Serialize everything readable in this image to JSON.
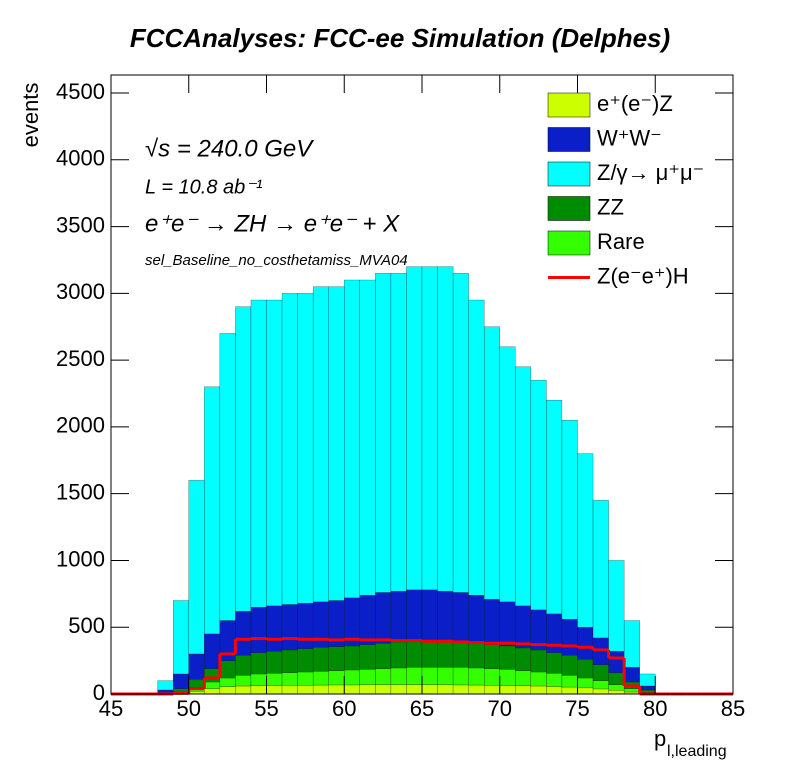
{
  "chart_data": {
    "type": "stacked_histogram",
    "title": "FCCAnalyses: FCC-ee Simulation (Delphes)",
    "x_label": {
      "main": "p",
      "sub": "l,leading"
    },
    "y_label": "events",
    "annotations": [
      "√s = 240.0 GeV",
      "L = 10.8 ab⁻¹",
      "e⁺e⁻ → ZH → e⁺e⁻ + X",
      "sel_Baseline_no_costhetamiss_MVA04"
    ],
    "bins": [
      45,
      46,
      47,
      48,
      49,
      50,
      51,
      52,
      53,
      54,
      55,
      56,
      57,
      58,
      59,
      60,
      61,
      62,
      63,
      64,
      65,
      66,
      67,
      68,
      69,
      70,
      71,
      72,
      73,
      74,
      75,
      76,
      77,
      78,
      79,
      80,
      81,
      82,
      83,
      84,
      85
    ],
    "xlim": [
      45,
      85
    ],
    "xticks": [
      45,
      50,
      55,
      60,
      65,
      70,
      75,
      80,
      85
    ],
    "ylim": [
      0,
      4635
    ],
    "yticks": [
      0,
      500,
      1000,
      1500,
      2000,
      2500,
      3000,
      3500,
      4000,
      4500
    ],
    "legend": "top-right",
    "series": [
      {
        "name": "e⁺(e⁻)Z",
        "color": "#ccff00",
        "values": [
          0,
          0,
          0,
          0,
          5,
          20,
          40,
          55,
          60,
          62,
          64,
          65,
          66,
          67,
          68,
          68,
          69,
          70,
          70,
          70,
          70,
          69,
          68,
          67,
          66,
          64,
          62,
          60,
          56,
          52,
          46,
          38,
          28,
          15,
          4,
          0,
          0,
          0,
          0,
          0
        ]
      },
      {
        "name": "W⁺W⁻",
        "color": "#0b1fc8",
        "values": [
          0,
          0,
          0,
          25,
          110,
          190,
          260,
          300,
          330,
          340,
          340,
          340,
          340,
          340,
          345,
          360,
          370,
          380,
          380,
          380,
          380,
          375,
          370,
          360,
          340,
          330,
          315,
          300,
          290,
          270,
          240,
          200,
          160,
          110,
          30,
          0,
          0,
          0,
          0,
          0
        ]
      },
      {
        "name": "Z/γ→ μ⁺μ⁻",
        "color": "#00ffff",
        "values": [
          0,
          0,
          0,
          70,
          550,
          1300,
          1850,
          2150,
          2280,
          2300,
          2290,
          2330,
          2320,
          2360,
          2350,
          2380,
          2360,
          2390,
          2380,
          2420,
          2420,
          2430,
          2390,
          2210,
          2040,
          1910,
          1790,
          1720,
          1600,
          1490,
          1300,
          1030,
          680,
          350,
          90,
          0,
          0,
          0,
          0,
          0
        ]
      },
      {
        "name": "ZZ",
        "color": "#008c00",
        "values": [
          0,
          0,
          0,
          3,
          25,
          60,
          100,
          130,
          150,
          160,
          165,
          170,
          175,
          180,
          180,
          180,
          185,
          190,
          195,
          200,
          200,
          195,
          190,
          185,
          180,
          175,
          170,
          165,
          155,
          150,
          140,
          120,
          90,
          50,
          18,
          0,
          0,
          0,
          0,
          0
        ]
      },
      {
        "name": "Rare",
        "color": "#33ff00",
        "values": [
          0,
          0,
          0,
          2,
          10,
          30,
          50,
          65,
          80,
          88,
          91,
          95,
          99,
          103,
          107,
          112,
          116,
          120,
          125,
          130,
          130,
          131,
          132,
          128,
          124,
          121,
          113,
          105,
          99,
          88,
          74,
          62,
          42,
          25,
          8,
          0,
          0,
          0,
          0,
          0
        ]
      },
      {
        "name": "Z(e⁻e⁺)H",
        "color": "#ff0000",
        "overlay": true,
        "values": [
          0,
          0,
          0,
          0,
          5,
          40,
          120,
          300,
          410,
          415,
          410,
          415,
          410,
          410,
          405,
          410,
          405,
          405,
          400,
          400,
          395,
          395,
          390,
          385,
          380,
          380,
          375,
          370,
          365,
          360,
          350,
          330,
          270,
          60,
          0,
          0,
          0,
          0,
          0,
          0
        ]
      }
    ]
  }
}
